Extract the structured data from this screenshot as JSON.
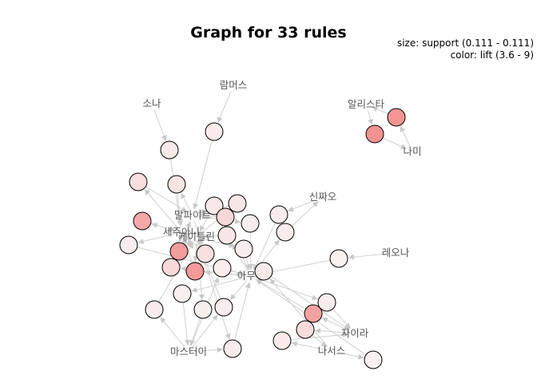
{
  "title": "Graph for 33 rules",
  "legend": {
    "size": "size: support (0.111 - 0.111)",
    "color": "color: lift (3.6 - 9)"
  },
  "colors": {
    "edge": "#cfcfcf",
    "label": "#555555",
    "lift_low": "#f9f0f0",
    "lift_high": "#f28e8e"
  },
  "items": [
    {
      "id": "i_lambs",
      "name": "람머스"
    },
    {
      "id": "i_sona",
      "name": "소나"
    },
    {
      "id": "i_alis",
      "name": "알리스타"
    },
    {
      "id": "i_nami",
      "name": "나미"
    },
    {
      "id": "i_malp",
      "name": "말파이트"
    },
    {
      "id": "i_sej",
      "name": "세주아니"
    },
    {
      "id": "i_kait",
      "name": "케이틀린"
    },
    {
      "id": "i_shin",
      "name": "신짜오"
    },
    {
      "id": "i_leona",
      "name": "레오나"
    },
    {
      "id": "i_amumu",
      "name": "아무무"
    },
    {
      "id": "i_zyra",
      "name": "자이라"
    },
    {
      "id": "i_nasus",
      "name": "나서스"
    },
    {
      "id": "i_master",
      "name": "마스터이"
    }
  ],
  "rules": [
    {
      "id": "r1",
      "lift": 3.9,
      "from": [
        "i_lambs"
      ],
      "to": "i_malp"
    },
    {
      "id": "r2",
      "lift": 4.0,
      "from": [
        "i_sona"
      ],
      "to": "i_sej"
    },
    {
      "id": "r3",
      "lift": 8.8,
      "from": [
        "i_alis"
      ],
      "to": "i_nami"
    },
    {
      "id": "r4",
      "lift": 8.6,
      "from": [
        "i_nami"
      ],
      "to": "i_alis"
    },
    {
      "id": "r5",
      "lift": 4.3,
      "from": [
        "i_malp"
      ],
      "to": "i_sej"
    },
    {
      "id": "r6",
      "lift": 4.6,
      "from": [
        "i_sej"
      ],
      "to": "i_malp"
    },
    {
      "id": "r7",
      "lift": 7.6,
      "from": [
        "i_kait"
      ],
      "to": "i_sej"
    },
    {
      "id": "r8",
      "lift": 4.0,
      "from": [
        "i_malp"
      ],
      "to": "i_kait"
    },
    {
      "id": "r9",
      "lift": 4.2,
      "from": [
        "i_kait"
      ],
      "to": "i_malp"
    },
    {
      "id": "r10",
      "lift": 5.0,
      "from": [
        "i_amumu"
      ],
      "to": "i_malp"
    },
    {
      "id": "r11",
      "lift": 3.7,
      "from": [
        "i_malp"
      ],
      "to": "i_amumu"
    },
    {
      "id": "r12",
      "lift": 3.8,
      "from": [
        "i_sej"
      ],
      "to": "i_amumu"
    },
    {
      "id": "r13",
      "lift": 4.1,
      "from": [
        "i_amumu"
      ],
      "to": "i_kait"
    },
    {
      "id": "r14",
      "lift": 3.9,
      "from": [
        "i_shin"
      ],
      "to": "i_amumu"
    },
    {
      "id": "r15",
      "lift": 3.8,
      "from": [
        "i_amumu"
      ],
      "to": "i_shin"
    },
    {
      "id": "r16",
      "lift": 3.6,
      "from": [
        "i_leona"
      ],
      "to": "i_amumu"
    },
    {
      "id": "r17",
      "lift": 3.8,
      "from": [
        "i_kait"
      ],
      "to": "i_amumu"
    },
    {
      "id": "r18",
      "lift": 8.2,
      "from": [
        "i_sej",
        "i_kait"
      ],
      "to": "i_malp"
    },
    {
      "id": "r19",
      "lift": 4.5,
      "from": [
        "i_malp",
        "i_kait"
      ],
      "to": "i_sej"
    },
    {
      "id": "r20",
      "lift": 8.4,
      "from": [
        "i_kait",
        "i_amumu"
      ],
      "to": "i_sej"
    },
    {
      "id": "r21",
      "lift": 4.9,
      "from": [
        "i_sej",
        "i_amumu"
      ],
      "to": "i_kait"
    },
    {
      "id": "r22",
      "lift": 3.8,
      "from": [
        "i_master"
      ],
      "to": "i_amumu"
    },
    {
      "id": "r23",
      "lift": 3.7,
      "from": [
        "i_amumu"
      ],
      "to": "i_master"
    },
    {
      "id": "r24",
      "lift": 3.9,
      "from": [
        "i_master"
      ],
      "to": "i_kait"
    },
    {
      "id": "r25",
      "lift": 3.7,
      "from": [
        "i_kait"
      ],
      "to": "i_master"
    },
    {
      "id": "r26",
      "lift": 3.8,
      "from": [
        "i_master",
        "i_amumu"
      ],
      "to": "i_kait"
    },
    {
      "id": "r27",
      "lift": 3.9,
      "from": [
        "i_master",
        "i_kait"
      ],
      "to": "i_amumu"
    },
    {
      "id": "r28",
      "lift": 7.9,
      "from": [
        "i_zyra"
      ],
      "to": "i_amumu"
    },
    {
      "id": "r29",
      "lift": 3.8,
      "from": [
        "i_amumu"
      ],
      "to": "i_zyra"
    },
    {
      "id": "r30",
      "lift": 4.7,
      "from": [
        "i_zyra"
      ],
      "to": "i_nasus"
    },
    {
      "id": "r31",
      "lift": 3.9,
      "from": [
        "i_nasus"
      ],
      "to": "i_zyra"
    },
    {
      "id": "r32",
      "lift": 3.6,
      "from": [
        "i_nasus"
      ],
      "to": "i_amumu"
    },
    {
      "id": "r33",
      "lift": 4.0,
      "from": [
        "i_amumu",
        "i_nasus"
      ],
      "to": "i_zyra"
    }
  ]
}
